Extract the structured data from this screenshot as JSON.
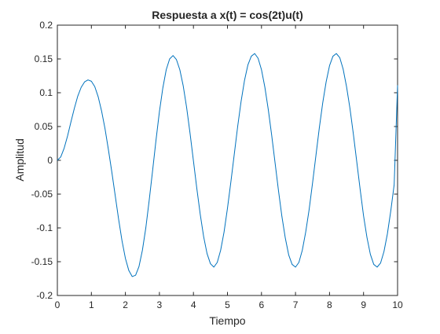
{
  "chart_data": {
    "type": "line",
    "title": "Respuesta a x(t) = cos(2t)u(t)",
    "xlabel": "Tiempo",
    "ylabel": "Amplitud",
    "xlim": [
      0,
      10
    ],
    "ylim": [
      -0.2,
      0.2
    ],
    "xticks": [
      0,
      1,
      2,
      3,
      4,
      5,
      6,
      7,
      8,
      9,
      10
    ],
    "yticks": [
      -0.2,
      -0.15,
      -0.1,
      -0.05,
      0,
      0.05,
      0.1,
      0.15,
      0.2
    ],
    "xtick_labels": [
      "0",
      "1",
      "2",
      "3",
      "4",
      "5",
      "6",
      "7",
      "8",
      "9",
      "10"
    ],
    "ytick_labels": [
      "-0.2",
      "-0.15",
      "-0.1",
      "-0.05",
      "0",
      "0.05",
      "0.1",
      "0.15",
      "0.2"
    ],
    "grid": false,
    "box": true,
    "series": [
      {
        "color": "#0072BD",
        "x": [
          0,
          0.1,
          0.2,
          0.3,
          0.4,
          0.5,
          0.6,
          0.7,
          0.8,
          0.9,
          1.0,
          1.1,
          1.2,
          1.3,
          1.4,
          1.5,
          1.6,
          1.7,
          1.8,
          1.9,
          2.0,
          2.1,
          2.2,
          2.3,
          2.4,
          2.5,
          2.6,
          2.7,
          2.8,
          2.9,
          3.0,
          3.1,
          3.2,
          3.3,
          3.4,
          3.5,
          3.6,
          3.7,
          3.8,
          3.9,
          4.0,
          4.1,
          4.2,
          4.3,
          4.4,
          4.5,
          4.6,
          4.7,
          4.8,
          4.9,
          5.0,
          5.1,
          5.2,
          5.3,
          5.4,
          5.5,
          5.6,
          5.7,
          5.8,
          5.9,
          6.0,
          6.1,
          6.2,
          6.3,
          6.4,
          6.5,
          6.6,
          6.7,
          6.8,
          6.9,
          7.0,
          7.1,
          7.2,
          7.3,
          7.4,
          7.5,
          7.6,
          7.7,
          7.8,
          7.9,
          8.0,
          8.1,
          8.2,
          8.3,
          8.4,
          8.5,
          8.6,
          8.7,
          8.8,
          8.9,
          9.0,
          9.1,
          9.2,
          9.3,
          9.4,
          9.5,
          9.6,
          9.7,
          9.8,
          9.9,
          10.0
        ],
        "y": [
          0,
          0.005,
          0.018,
          0.036,
          0.057,
          0.077,
          0.095,
          0.108,
          0.116,
          0.119,
          0.117,
          0.109,
          0.094,
          0.073,
          0.047,
          0.016,
          -0.017,
          -0.052,
          -0.087,
          -0.119,
          -0.145,
          -0.163,
          -0.172,
          -0.17,
          -0.157,
          -0.133,
          -0.1,
          -0.059,
          -0.015,
          0.03,
          0.072,
          0.107,
          0.134,
          0.15,
          0.155,
          0.149,
          0.134,
          0.11,
          0.078,
          0.04,
          -0.001,
          -0.042,
          -0.08,
          -0.113,
          -0.138,
          -0.153,
          -0.158,
          -0.151,
          -0.133,
          -0.106,
          -0.071,
          -0.032,
          0.009,
          0.05,
          0.087,
          0.118,
          0.141,
          0.154,
          0.158,
          0.151,
          0.134,
          0.108,
          0.075,
          0.037,
          -0.004,
          -0.045,
          -0.083,
          -0.115,
          -0.14,
          -0.154,
          -0.158,
          -0.151,
          -0.133,
          -0.106,
          -0.073,
          -0.034,
          0.007,
          0.048,
          0.085,
          0.116,
          0.14,
          0.154,
          0.158,
          0.152,
          0.135,
          0.109,
          0.077,
          0.039,
          -0.002,
          -0.043,
          -0.082,
          -0.114,
          -0.139,
          -0.154,
          -0.158,
          -0.152,
          -0.135,
          -0.109,
          -0.075,
          -0.036,
          0.111
        ]
      }
    ]
  }
}
